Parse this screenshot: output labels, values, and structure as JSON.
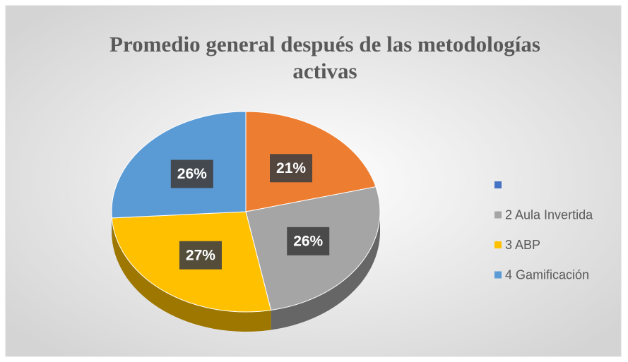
{
  "chart_data": {
    "type": "pie",
    "title": "Promedio general después de las metodologías activas",
    "categories": [
      null,
      "2 Aula Invertida",
      "3 ABP",
      "4 Gamificación"
    ],
    "values": [
      21,
      26,
      27,
      26
    ],
    "value_labels": [
      "21%",
      "26%",
      "27%",
      "26%"
    ],
    "colors": [
      "#ed7d31",
      "#a5a5a5",
      "#ffc000",
      "#5b9bd5"
    ],
    "legend_colors": [
      "#4472c4",
      "#a5a5a5",
      "#ffc000",
      "#5b9bd5"
    ],
    "legend": "right"
  }
}
